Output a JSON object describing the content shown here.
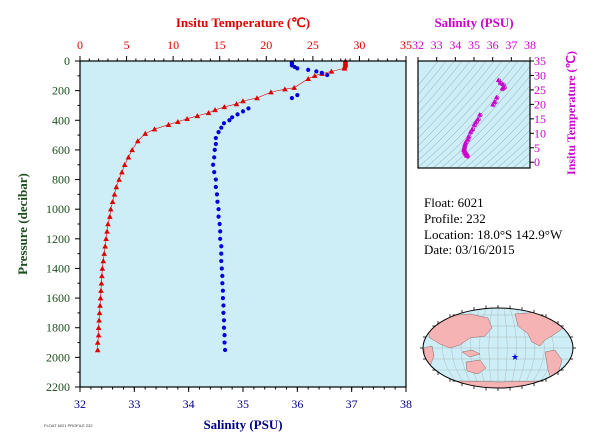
{
  "colors": {
    "plot_bg": "#cdeef7",
    "temperature": "#dd0000",
    "salinity": "#0000dd",
    "ts_accent": "#cc00cc",
    "pressure_axis": "#1e4d1e",
    "salinity_axis": "#000088",
    "land": "#f5b3b3",
    "ocean": "#cdeef7"
  },
  "info": {
    "float": "Float:  6021",
    "profile": "Profile:  232",
    "location": "Location:  18.0°S  142.9°W",
    "date": "Date:  03/16/2015"
  },
  "footer_text": "FLOAT 6021 PROFILE 232",
  "map": {
    "marker_icon": "star-icon"
  },
  "chart_data": [
    {
      "type": "line",
      "title": "",
      "top_axis": {
        "label": "Insitu Temperature (℃)",
        "range": [
          0,
          35
        ],
        "ticks": [
          "0",
          "5",
          "10",
          "15",
          "20",
          "25",
          "30",
          "35"
        ]
      },
      "bottom_axis": {
        "label": "Salinity (PSU)",
        "range": [
          32,
          38
        ],
        "ticks": [
          "32",
          "33",
          "34",
          "35",
          "36",
          "37",
          "38"
        ]
      },
      "left_axis": {
        "label": "Pressure (decibar)",
        "range": [
          0,
          2200
        ],
        "inverted": true,
        "ticks": [
          "0",
          "200",
          "400",
          "600",
          "800",
          "1000",
          "1200",
          "1400",
          "1600",
          "1800",
          "2000",
          "2200"
        ]
      },
      "series": [
        {
          "name": "Temperature",
          "marker": "triangle",
          "points": [
            [
              28.5,
              0
            ],
            [
              28.5,
              10
            ],
            [
              28.5,
              20
            ],
            [
              28.5,
              30
            ],
            [
              28.4,
              40
            ],
            [
              28.4,
              50
            ],
            [
              27.0,
              70
            ],
            [
              26.0,
              85
            ],
            [
              25.2,
              100
            ],
            [
              24.5,
              120
            ],
            [
              23.0,
              180
            ],
            [
              22.0,
              190
            ],
            [
              20.5,
              210
            ],
            [
              19.0,
              250
            ],
            [
              17.5,
              270
            ],
            [
              16.8,
              290
            ],
            [
              15.5,
              310
            ],
            [
              14.5,
              330
            ],
            [
              13.8,
              350
            ],
            [
              12.6,
              370
            ],
            [
              11.5,
              390
            ],
            [
              10.5,
              410
            ],
            [
              9.5,
              430
            ],
            [
              8.0,
              460
            ],
            [
              7.0,
              490
            ],
            [
              6.2,
              540
            ],
            [
              5.6,
              600
            ],
            [
              5.2,
              650
            ],
            [
              4.8,
              700
            ],
            [
              4.5,
              750
            ],
            [
              4.2,
              800
            ],
            [
              3.9,
              850
            ],
            [
              3.7,
              900
            ],
            [
              3.5,
              950
            ],
            [
              3.3,
              1000
            ],
            [
              3.2,
              1050
            ],
            [
              3.0,
              1100
            ],
            [
              2.9,
              1150
            ],
            [
              2.8,
              1200
            ],
            [
              2.7,
              1250
            ],
            [
              2.6,
              1300
            ],
            [
              2.5,
              1350
            ],
            [
              2.4,
              1400
            ],
            [
              2.35,
              1450
            ],
            [
              2.3,
              1500
            ],
            [
              2.25,
              1550
            ],
            [
              2.2,
              1600
            ],
            [
              2.15,
              1650
            ],
            [
              2.1,
              1700
            ],
            [
              2.05,
              1750
            ],
            [
              2.0,
              1800
            ],
            [
              2.0,
              1850
            ],
            [
              1.9,
              1900
            ],
            [
              1.9,
              1950
            ]
          ]
        },
        {
          "name": "Salinity",
          "marker": "circle",
          "points": [
            [
              35.9,
              10
            ],
            [
              35.9,
              20
            ],
            [
              35.9,
              30
            ],
            [
              35.95,
              40
            ],
            [
              36.0,
              50
            ],
            [
              36.2,
              60
            ],
            [
              36.35,
              70
            ],
            [
              36.45,
              80
            ],
            [
              36.55,
              95
            ],
            [
              36.0,
              230
            ],
            [
              35.9,
              250
            ],
            [
              35.1,
              320
            ],
            [
              35.0,
              340
            ],
            [
              34.9,
              360
            ],
            [
              34.8,
              380
            ],
            [
              34.75,
              400
            ],
            [
              34.65,
              420
            ],
            [
              34.6,
              450
            ],
            [
              34.55,
              480
            ],
            [
              34.5,
              520
            ],
            [
              34.5,
              560
            ],
            [
              34.48,
              600
            ],
            [
              34.47,
              650
            ],
            [
              34.45,
              700
            ],
            [
              34.47,
              750
            ],
            [
              34.5,
              800
            ],
            [
              34.5,
              850
            ],
            [
              34.52,
              900
            ],
            [
              34.53,
              950
            ],
            [
              34.55,
              1000
            ],
            [
              34.55,
              1050
            ],
            [
              34.57,
              1100
            ],
            [
              34.58,
              1150
            ],
            [
              34.58,
              1200
            ],
            [
              34.6,
              1250
            ],
            [
              34.6,
              1300
            ],
            [
              34.6,
              1350
            ],
            [
              34.61,
              1400
            ],
            [
              34.62,
              1450
            ],
            [
              34.62,
              1500
            ],
            [
              34.63,
              1550
            ],
            [
              34.63,
              1600
            ],
            [
              34.64,
              1650
            ],
            [
              34.64,
              1700
            ],
            [
              34.65,
              1750
            ],
            [
              34.65,
              1800
            ],
            [
              34.66,
              1850
            ],
            [
              34.66,
              1900
            ],
            [
              34.67,
              1950
            ]
          ]
        }
      ]
    },
    {
      "type": "scatter",
      "title": "",
      "top_axis": {
        "label": "Salinity (PSU)",
        "range": [
          32,
          38
        ],
        "ticks": [
          "32",
          "33",
          "34",
          "35",
          "36",
          "37",
          "38"
        ]
      },
      "right_axis": {
        "label": "Insitu Temperature (℃)",
        "range": [
          -2,
          35
        ],
        "ticks": [
          "0",
          "5",
          "10",
          "15",
          "20",
          "25",
          "30",
          "35"
        ]
      },
      "series": [
        {
          "name": "T-S",
          "marker": "triangle-circle",
          "points": [
            [
              36.3,
              28.4
            ],
            [
              36.4,
              27.5
            ],
            [
              36.55,
              27.0
            ],
            [
              36.6,
              26.0
            ],
            [
              36.5,
              25.5
            ],
            [
              36.2,
              22.5
            ],
            [
              36.1,
              21.0
            ],
            [
              36.0,
              20.0
            ],
            [
              35.3,
              16.5
            ],
            [
              35.2,
              15.0
            ],
            [
              35.1,
              14.0
            ],
            [
              35.0,
              13.0
            ],
            [
              34.9,
              11.5
            ],
            [
              34.8,
              10.5
            ],
            [
              34.7,
              9.0
            ],
            [
              34.65,
              8.0
            ],
            [
              34.55,
              7.0
            ],
            [
              34.5,
              6.2
            ],
            [
              34.48,
              5.5
            ],
            [
              34.45,
              4.8
            ],
            [
              34.45,
              4.2
            ],
            [
              34.47,
              3.7
            ],
            [
              34.5,
              3.3
            ],
            [
              34.55,
              3.0
            ],
            [
              34.58,
              2.7
            ],
            [
              34.6,
              2.4
            ],
            [
              34.62,
              2.2
            ]
          ]
        }
      ]
    }
  ]
}
